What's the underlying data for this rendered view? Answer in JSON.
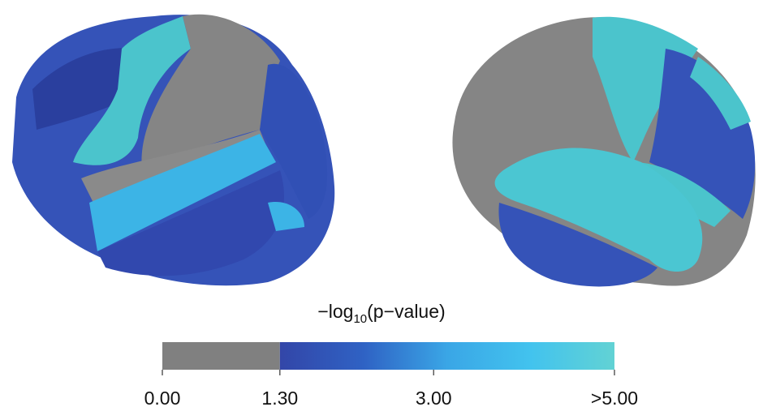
{
  "colorbar": {
    "title": {
      "main": "−log",
      "subscript": "10",
      "suffix": "(p−value)"
    },
    "lim": [
      0,
      5
    ],
    "ticks": [
      {
        "value": 0,
        "label": "0.00"
      },
      {
        "value": 1.3,
        "label": "1.30"
      },
      {
        "value": 3,
        "label": "3.00"
      },
      {
        "value": 5,
        "label": ">5.00"
      }
    ],
    "threshold": 1.3,
    "below_color": "#808080",
    "colors": [
      "#3346a8",
      "#2f62c4",
      "#3aa6e6",
      "#42c3ee",
      "#62d2d4"
    ]
  }
}
